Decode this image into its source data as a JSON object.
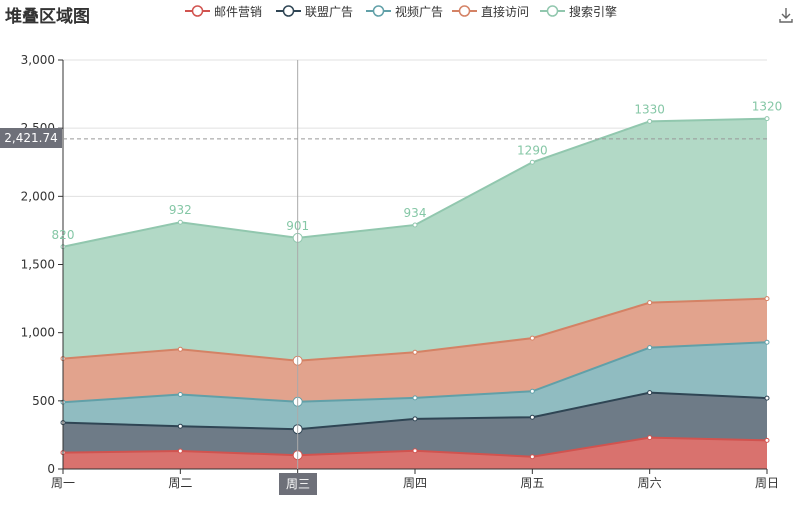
{
  "title": "堆叠区域图",
  "toolbox": {
    "download_icon": "download-icon"
  },
  "chart_data": {
    "type": "area",
    "stacked": true,
    "categories": [
      "周一",
      "周二",
      "周三",
      "周四",
      "周五",
      "周六",
      "周日"
    ],
    "ylim": [
      0,
      3000
    ],
    "yticks": [
      0,
      500,
      1000,
      1500,
      2000,
      2500,
      3000
    ],
    "ytick_labels": [
      "0",
      "500",
      "1,000",
      "1,500",
      "2,000",
      "2,500",
      "3,000"
    ],
    "grid": true,
    "legend_position": "top",
    "series": [
      {
        "name": "邮件营销",
        "color": "#d1534f",
        "fill": "#d9726e",
        "values": [
          120,
          132,
          101,
          134,
          90,
          230,
          210
        ]
      },
      {
        "name": "联盟广告",
        "color": "#2f4554",
        "fill": "#6e7b87",
        "values": [
          220,
          182,
          191,
          234,
          290,
          330,
          310
        ]
      },
      {
        "name": "视频广告",
        "color": "#61a0a8",
        "fill": "#90bcc1",
        "values": [
          150,
          232,
          201,
          154,
          190,
          330,
          410
        ]
      },
      {
        "name": "直接访问",
        "color": "#d48265",
        "fill": "#e2a38d",
        "values": [
          320,
          332,
          301,
          334,
          390,
          330,
          320
        ]
      },
      {
        "name": "搜索引擎",
        "color": "#91c7ae",
        "fill": "#b2d9c6",
        "values": [
          820,
          932,
          901,
          934,
          1290,
          1330,
          1320
        ]
      }
    ],
    "label_series": "搜索引擎",
    "labels": [
      "820",
      "932",
      "901",
      "934",
      "1290",
      "1330",
      "1320"
    ],
    "crosshair": {
      "y_value": 2421.74,
      "y_label": "2,421.74",
      "x_category": "周三"
    }
  }
}
